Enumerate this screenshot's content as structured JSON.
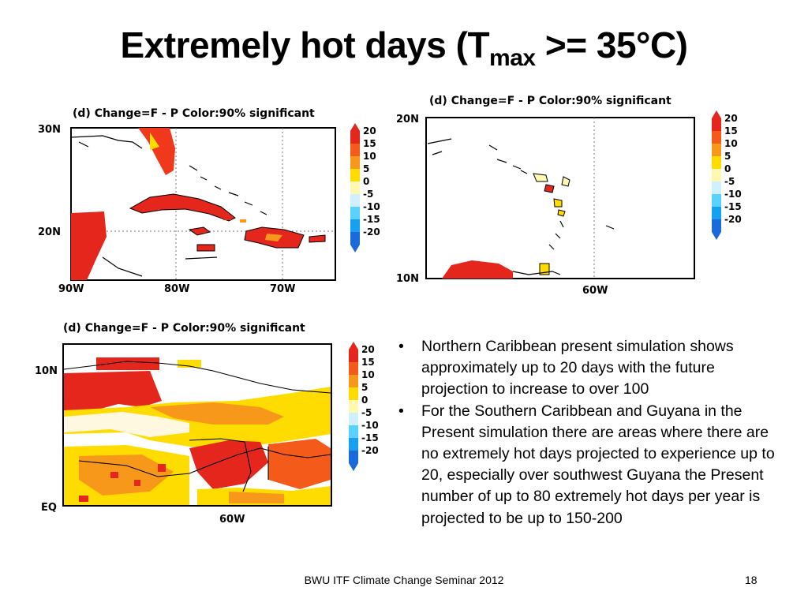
{
  "slide": {
    "title_main": "Extremely hot days (T",
    "title_sub": "max",
    "title_end": " >= 35°C)",
    "footer": "BWU ITF Climate Change Seminar 2012",
    "page_number": "18"
  },
  "maps": [
    {
      "header": "(d)  Change=F  -  P    Color:90%  significant",
      "lat_labels": [
        "30N",
        "20N"
      ],
      "lon_labels": [
        "90W",
        "80W",
        "70W"
      ]
    },
    {
      "header": "(d)  Change=F  -  P    Color:90%  significant",
      "lat_labels": [
        "20N",
        "10N"
      ],
      "lon_labels": [
        "60W"
      ]
    },
    {
      "header": "(d)  Change=F  -  P    Color:90%  significant",
      "lat_labels": [
        "10N",
        "EQ"
      ],
      "lon_labels": [
        "60W"
      ]
    }
  ],
  "colorbar": {
    "labels": [
      "20",
      "15",
      "10",
      "5",
      "0",
      "-5",
      "-10",
      "-15",
      "-20"
    ],
    "colors": [
      "#e4261c",
      "#f45a1a",
      "#f8981a",
      "#ffdc00",
      "#fff8b0",
      "#d0f0ff",
      "#5ad2ff",
      "#16a0f0",
      "#1a6adc"
    ]
  },
  "bullets": [
    "Northern Caribbean present simulation shows approximately up to 20 days with the future projection to increase to over 100",
    "For the Southern Caribbean and Guyana in the Present simulation there are areas where there are no extremely hot days projected to experience up to 20, especially over southwest Guyana the Present number of up to 80 extremely hot days per year is projected to be up to 150-200"
  ]
}
